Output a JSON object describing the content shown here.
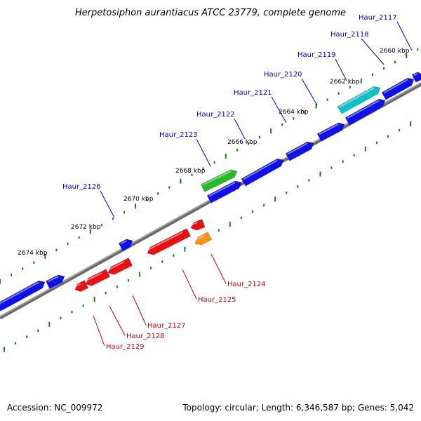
{
  "title": "Herpetosiphon aurantiacus ATCC 23779, complete genome",
  "footer": {
    "accession": "Accession: NC_009972",
    "summary": "Topology: circular; Length: 6,346,587 bp; Genes: 5,042"
  },
  "colors": {
    "forward_gene": "#1010e8",
    "reverse_gene": "#e81010",
    "green_gene": "#28b828",
    "cyan_gene": "#10c0c8",
    "orange_gene": "#ff9010",
    "axis": "#8a8a8a",
    "tick": "#1a7a1a",
    "label_blue": "#0000cc",
    "label_red": "#cc0000"
  },
  "scale_labels": [
    "2660 kbp",
    "2662 kbp",
    "2664 kbp",
    "2666 kbp",
    "2668 kbp",
    "2670 kbp",
    "2672 kbp",
    "2674 kbp"
  ],
  "gene_labels_top": [
    "Haur_2117",
    "Haur_2118",
    "Haur_2119",
    "Haur_2120",
    "Haur_2121",
    "Haur_2122",
    "Haur_2123",
    "Haur_2126"
  ],
  "gene_labels_bottom": [
    "Haur_2124",
    "Haur_2125",
    "Haur_2127",
    "Haur_2128",
    "Haur_2129"
  ]
}
